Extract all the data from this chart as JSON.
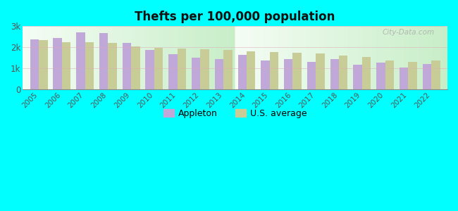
{
  "title": "Thefts per 100,000 population",
  "years": [
    2005,
    2006,
    2007,
    2008,
    2009,
    2010,
    2011,
    2012,
    2013,
    2014,
    2015,
    2016,
    2017,
    2018,
    2019,
    2020,
    2021,
    2022
  ],
  "appleton": [
    2380,
    2440,
    2720,
    2680,
    2200,
    1870,
    1680,
    1510,
    1450,
    1630,
    1380,
    1460,
    1300,
    1430,
    1170,
    1260,
    1040,
    1220
  ],
  "us_avg": [
    2330,
    2260,
    2250,
    2200,
    2040,
    1970,
    1960,
    1920,
    1870,
    1820,
    1790,
    1730,
    1710,
    1600,
    1550,
    1370,
    1310,
    1380
  ],
  "appleton_color": "#c0a8d8",
  "us_avg_color": "#c8cc96",
  "background_plot_top": "#f5fdf5",
  "background_plot_bottom": "#c8eec8",
  "background_fig": "#00ffff",
  "bar_width": 0.38,
  "ylim": [
    0,
    3000
  ],
  "yticks": [
    0,
    1000,
    2000,
    3000
  ],
  "ytick_labels": [
    "0",
    "1k",
    "2k",
    "3k"
  ],
  "legend_appleton": "Appleton",
  "legend_us": "U.S. average",
  "watermark": "City-Data.com"
}
